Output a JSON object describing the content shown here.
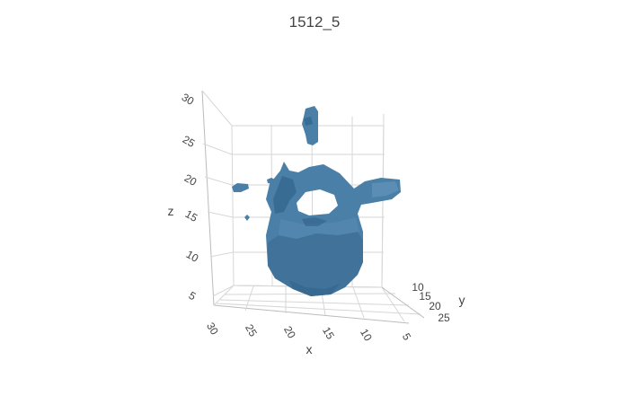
{
  "chart_data": {
    "type": "isosurface",
    "title": "1512_5",
    "colors": {
      "surface": "#4a7fa7",
      "surface_shadow": "#2f5f85",
      "surface_highlight": "#6d9cc2"
    },
    "axes": {
      "x": {
        "label": "x",
        "ticks": [
          "30",
          "25",
          "20",
          "15",
          "10",
          "5"
        ],
        "range": [
          2,
          33
        ]
      },
      "y": {
        "label": "y",
        "ticks": [
          "10",
          "15",
          "20",
          "25"
        ],
        "range": [
          8,
          27
        ]
      },
      "z": {
        "label": "z",
        "ticks": [
          "5",
          "10",
          "15",
          "20",
          "25",
          "30"
        ],
        "range": [
          2,
          32
        ]
      }
    },
    "grid": true,
    "legend": "none"
  }
}
